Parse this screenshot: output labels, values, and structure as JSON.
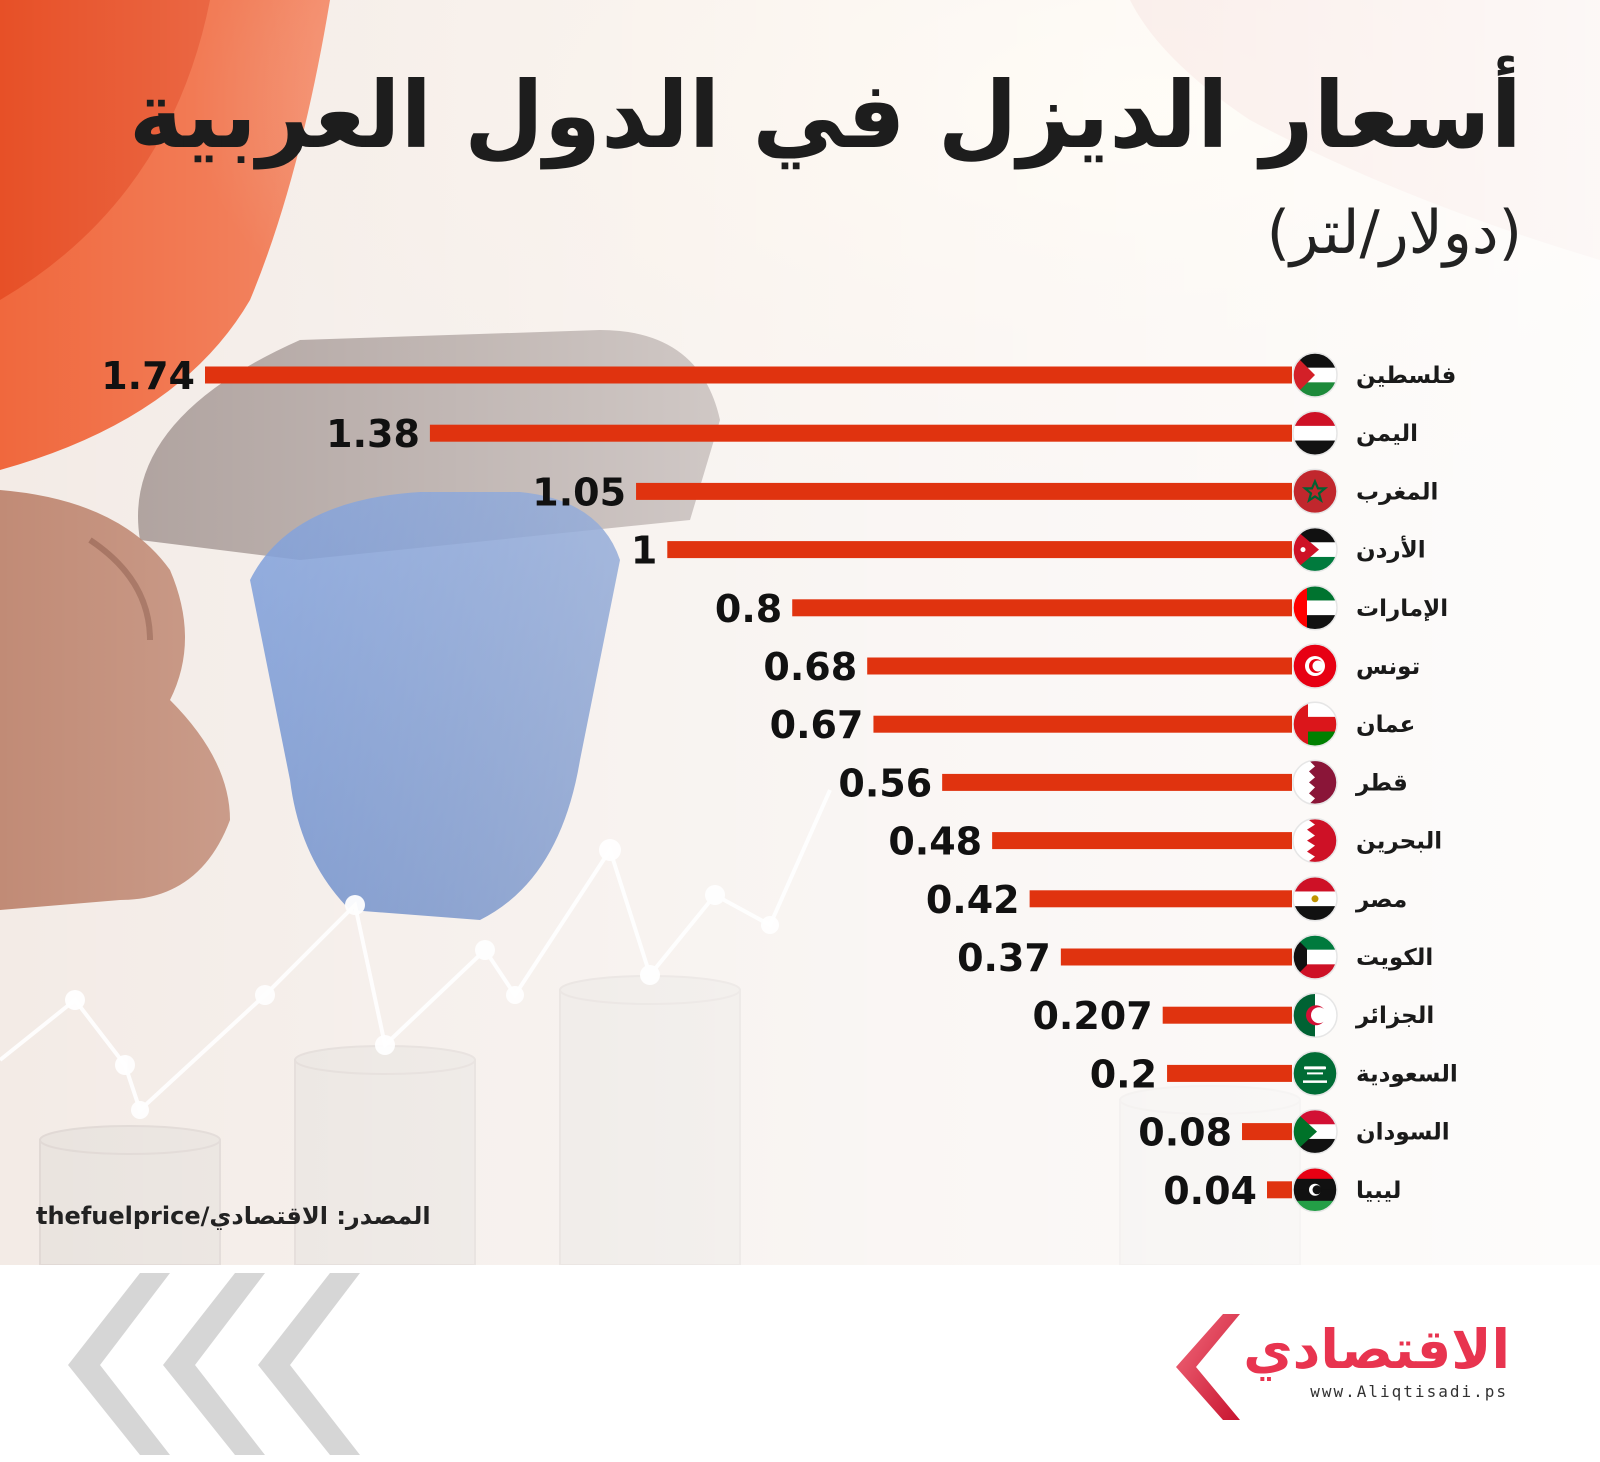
{
  "header": {
    "title": "أسعار الديزل في الدول العربية",
    "subtitle": "(دولار/لتر)"
  },
  "source_text": "المصدر: الاقتصادي/thefuelprice",
  "brand": {
    "name": "الاقتصادي",
    "url": "www.Aliqtisadi.ps",
    "accent": "#e8344f"
  },
  "colors": {
    "bar": "#e0330f",
    "text": "#111111"
  },
  "chart_data": {
    "type": "bar",
    "orientation": "horizontal",
    "title": "أسعار الديزل في الدول العربية",
    "subtitle": "(دولار/لتر)",
    "categories": [
      "فلسطين",
      "اليمن",
      "المغرب",
      "الأردن",
      "الإمارات",
      "تونس",
      "عمان",
      "قطر",
      "البحرين",
      "مصر",
      "الكويت",
      "الجزائر",
      "السعودية",
      "السودان",
      "ليبيا"
    ],
    "value_labels": [
      "1.74",
      "1.38",
      "1.05",
      "1",
      "0.8",
      "0.68",
      "0.67",
      "0.56",
      "0.48",
      "0.42",
      "0.37",
      "0.207",
      "0.2",
      "0.08",
      "0.04"
    ],
    "values": [
      1.74,
      1.38,
      1.05,
      1,
      0.8,
      0.68,
      0.67,
      0.56,
      0.48,
      0.42,
      0.37,
      0.207,
      0.2,
      0.08,
      0.04
    ],
    "flags": [
      "palestine-flag-icon",
      "yemen-flag-icon",
      "morocco-flag-icon",
      "jordan-flag-icon",
      "uae-flag-icon",
      "tunisia-flag-icon",
      "oman-flag-icon",
      "qatar-flag-icon",
      "bahrain-flag-icon",
      "egypt-flag-icon",
      "kuwait-flag-icon",
      "algeria-flag-icon",
      "saudi-flag-icon",
      "sudan-flag-icon",
      "libya-flag-icon"
    ],
    "xlim": [
      0,
      1.74
    ],
    "grid": false,
    "legend": "none"
  }
}
